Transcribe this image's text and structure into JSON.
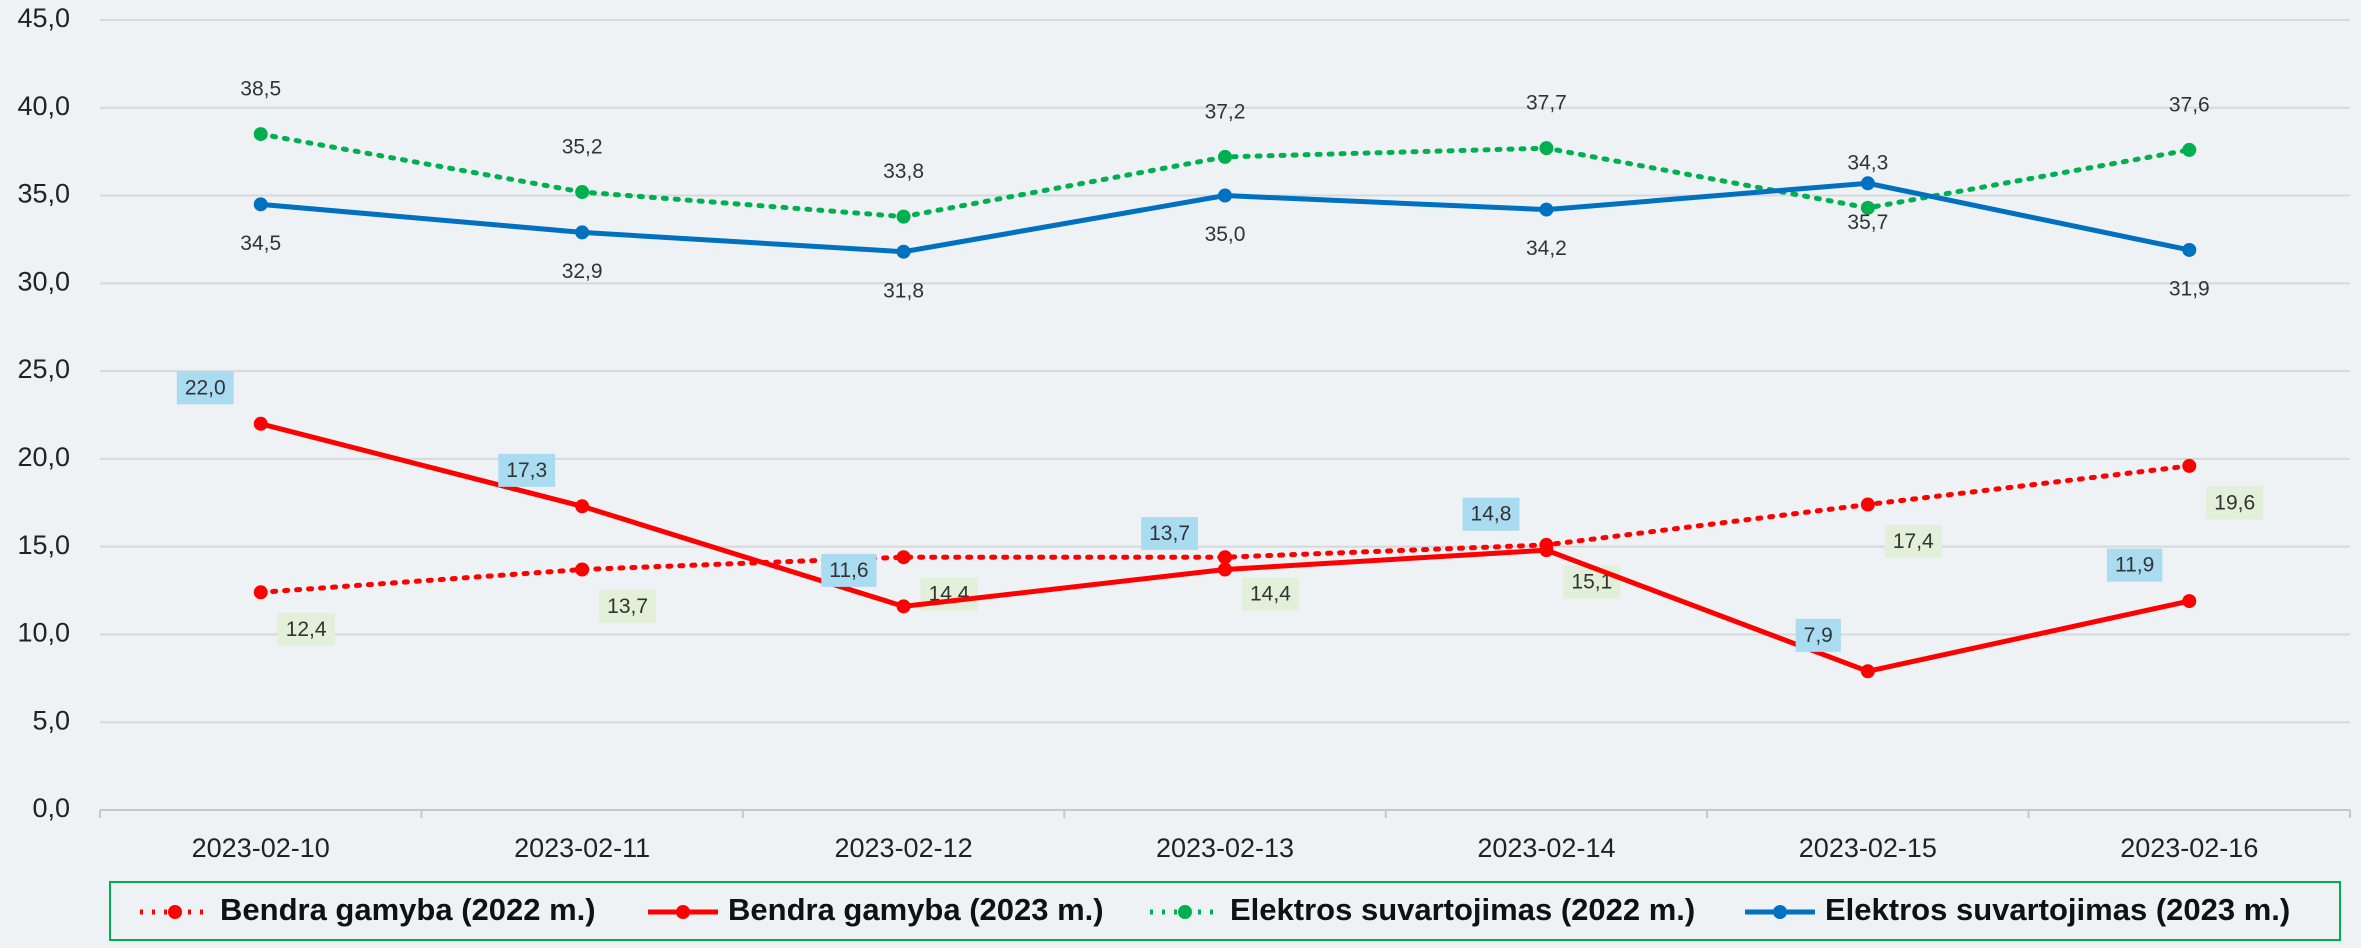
{
  "chart_data": {
    "type": "line",
    "categories": [
      "2023-02-10",
      "2023-02-11",
      "2023-02-12",
      "2023-02-13",
      "2023-02-14",
      "2023-02-15",
      "2023-02-16"
    ],
    "series": [
      {
        "name": "Bendra gamyba (2022 m.)",
        "color": "#ff0000",
        "style": "dotted",
        "values": [
          12.4,
          13.7,
          14.4,
          14.4,
          15.1,
          17.4,
          19.6
        ],
        "value_labels": [
          "12,4",
          "13,7",
          "14,4",
          "14,4",
          "15,1",
          "17,4",
          "19,6"
        ]
      },
      {
        "name": "Bendra gamyba (2023 m.)",
        "color": "#ff0000",
        "style": "solid",
        "values": [
          22.0,
          17.3,
          11.6,
          13.7,
          14.8,
          7.9,
          11.9
        ],
        "value_labels": [
          "22,0",
          "17,3",
          "11,6",
          "13,7",
          "14,8",
          "7,9",
          "11,9"
        ]
      },
      {
        "name": "Elektros suvartojimas (2022 m.)",
        "color": "#00b050",
        "style": "dotted",
        "values": [
          38.5,
          35.2,
          33.8,
          37.2,
          37.7,
          34.3,
          37.6
        ],
        "value_labels": [
          "38,5",
          "35,2",
          "33,8",
          "37,2",
          "37,7",
          "34,3",
          "37,6"
        ]
      },
      {
        "name": "Elektros suvartojimas (2023 m.)",
        "color": "#0070c0",
        "style": "solid",
        "values": [
          34.5,
          32.9,
          31.8,
          35.0,
          34.2,
          35.7,
          31.9
        ],
        "value_labels": [
          "34,5",
          "32,9",
          "31,8",
          "35,0",
          "34,2",
          "35,7",
          "31,9"
        ]
      }
    ],
    "ylim": [
      0,
      45
    ],
    "yticks": [
      {
        "value": 0,
        "label": "0,0"
      },
      {
        "value": 5,
        "label": "5,0"
      },
      {
        "value": 10,
        "label": "10,0"
      },
      {
        "value": 15,
        "label": "15,0"
      },
      {
        "value": 20,
        "label": "20,0"
      },
      {
        "value": 25,
        "label": "25,0"
      },
      {
        "value": 30,
        "label": "30,0"
      },
      {
        "value": 35,
        "label": "35,0"
      },
      {
        "value": 40,
        "label": "40,0"
      },
      {
        "value": 45,
        "label": "45,0"
      }
    ],
    "grid": true,
    "legend": "bottom"
  }
}
